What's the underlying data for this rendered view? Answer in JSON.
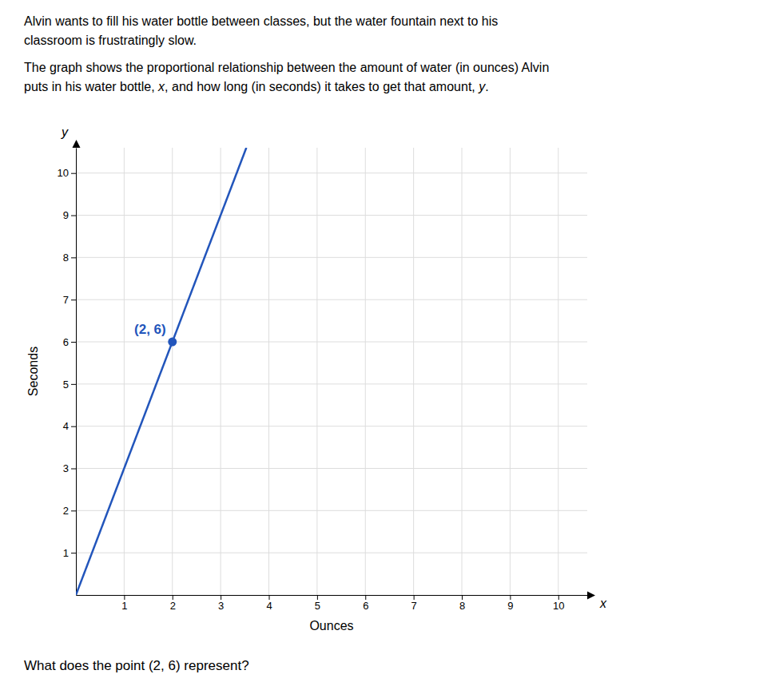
{
  "chart_data": {
    "type": "line",
    "title": [
      "Alvin wants to fill his water bottle between classes, but the water fountain next to his",
      "classroom is frustratingly slow."
    ],
    "subtitle": [
      [
        "The graph shows the proportional relationship between the amount of water (in ounces) Alvin"
      ],
      [
        "puts in his water bottle, ",
        "x",
        ", and how long (in seconds) it takes to get that amount, ",
        "y",
        "."
      ]
    ],
    "caption": "What does the point (2, 6) represent?",
    "x_label": "Ounces",
    "y_label": "Seconds",
    "x_symbol": "x",
    "y_symbol": "y",
    "xlim": [
      0,
      10.6
    ],
    "ylim": [
      0,
      10.6
    ],
    "xticks": [
      1,
      2,
      3,
      4,
      5,
      6,
      7,
      8,
      9,
      10
    ],
    "yticks": [
      1,
      2,
      3,
      4,
      5,
      6,
      7,
      8,
      9,
      10
    ],
    "grid": true,
    "series": [
      {
        "type": "line",
        "color": "#2255bb",
        "x": [
          0,
          3.533
        ],
        "values": [
          0,
          10.6
        ]
      },
      {
        "type": "scatter",
        "color": "#2255bb",
        "x": [
          2
        ],
        "values": [
          6
        ],
        "data_labels": true,
        "value_labels": [
          "(2, 6)"
        ]
      }
    ]
  }
}
